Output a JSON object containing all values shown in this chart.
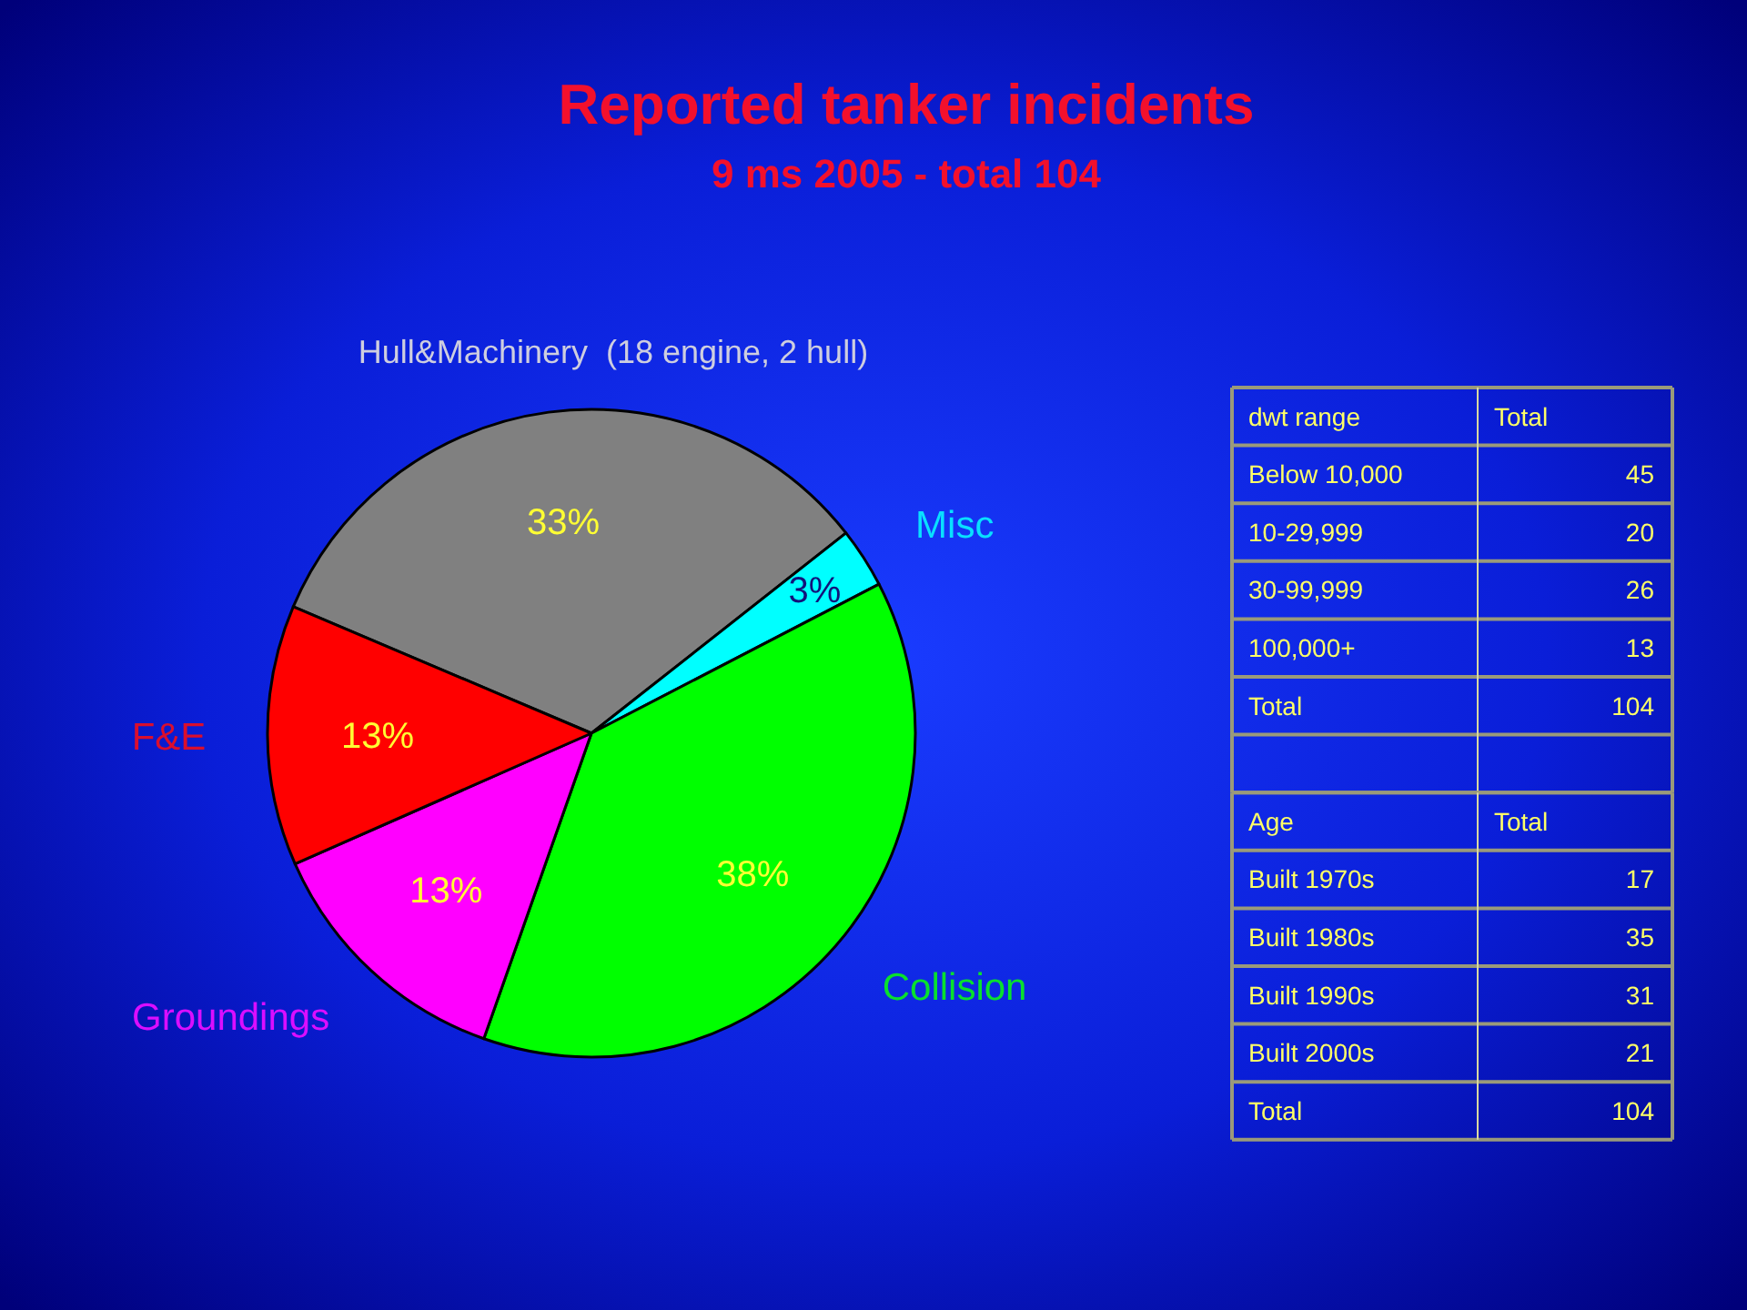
{
  "chart_data": [
    {
      "type": "pie",
      "title": "Reported tanker incidents",
      "subtitle": "9 ms 2005 - total 104",
      "categories": [
        "Hull&Machinery  (18 engine, 2 hull)",
        "Misc",
        "Collision",
        "Groundings",
        "F&E"
      ],
      "values": [
        33,
        3,
        38,
        13,
        13
      ],
      "colors": [
        "#808080",
        "#00ffff",
        "#00ff00",
        "#ff00ff",
        "#ff0000"
      ],
      "value_labels": [
        "33%",
        "3%",
        "38%",
        "13%",
        "13%"
      ]
    },
    {
      "type": "other",
      "xlabel": "dwt range",
      "ylabel": "Total",
      "categories": [
        "Below 10,000",
        "10-29,999",
        "30-99,999",
        "100,000+",
        "Total"
      ],
      "values": [
        45,
        20,
        26,
        13,
        104
      ],
      "data_labels": true
    },
    {
      "type": "other",
      "xlabel": "Age",
      "ylabel": "Total",
      "categories": [
        "Built 1970s",
        "Built 1980s",
        "Built 1990s",
        "Built 2000s",
        "Total"
      ],
      "values": [
        17,
        35,
        31,
        21,
        104
      ],
      "data_labels": true
    }
  ]
}
